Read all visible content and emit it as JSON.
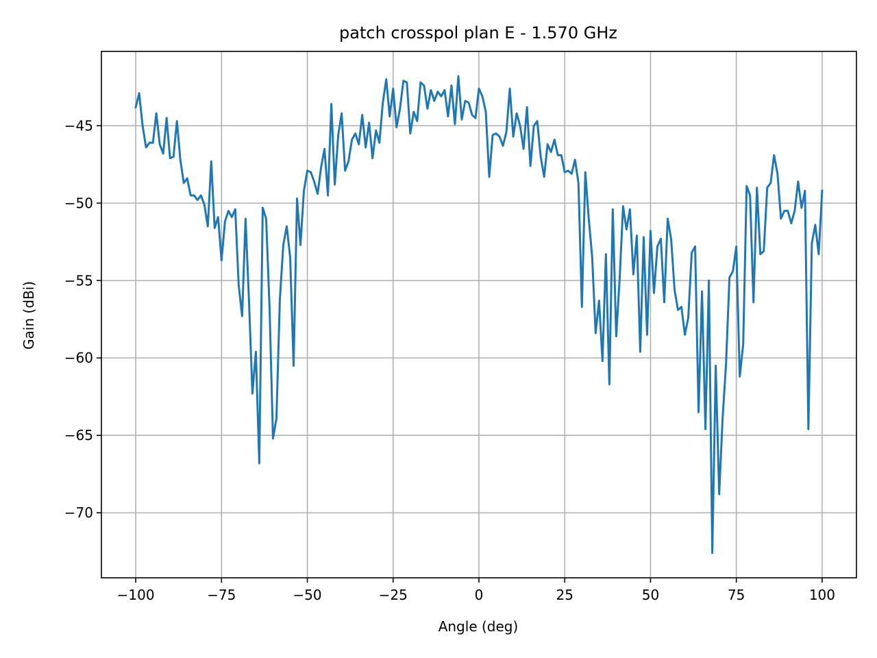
{
  "chart_data": {
    "type": "line",
    "title": "patch crosspol plan E - 1.570 GHz",
    "xlabel": "Angle (deg)",
    "ylabel": "Gain (dBi)",
    "xlim": [
      -110,
      110
    ],
    "ylim": [
      -74.2,
      -40.2
    ],
    "xticks": [
      -100,
      -75,
      -50,
      -25,
      0,
      25,
      50,
      75,
      100
    ],
    "yticks": [
      -70,
      -65,
      -60,
      -55,
      -50,
      -45
    ],
    "grid": true,
    "series": [
      {
        "color": "#1f77b4",
        "x": [
          -100,
          -99,
          -98,
          -97,
          -96,
          -95,
          -94,
          -93,
          -92,
          -91,
          -90,
          -89,
          -88,
          -87,
          -86,
          -85,
          -84,
          -83,
          -82,
          -81,
          -80,
          -79,
          -78,
          -77,
          -76,
          -75,
          -74,
          -73,
          -72,
          -71,
          -70,
          -69,
          -68,
          -67,
          -66,
          -65,
          -64,
          -63,
          -62,
          -61,
          -60,
          -59,
          -58,
          -57,
          -56,
          -55,
          -54,
          -53,
          -52,
          -51,
          -50,
          -49,
          -48,
          -47,
          -46,
          -45,
          -44,
          -43,
          -42,
          -41,
          -40,
          -39,
          -38,
          -37,
          -36,
          -35,
          -34,
          -33,
          -32,
          -31,
          -30,
          -29,
          -28,
          -27,
          -26,
          -25,
          -24,
          -23,
          -22,
          -21,
          -20,
          -19,
          -18,
          -17,
          -16,
          -15,
          -14,
          -13,
          -12,
          -11,
          -10,
          -9,
          -8,
          -7,
          -6,
          -5,
          -4,
          -3,
          -2,
          -1,
          0,
          1,
          2,
          3,
          4,
          5,
          6,
          7,
          8,
          9,
          10,
          11,
          12,
          13,
          14,
          15,
          16,
          17,
          18,
          19,
          20,
          21,
          22,
          23,
          24,
          25,
          26,
          27,
          28,
          29,
          30,
          31,
          32,
          33,
          34,
          35,
          36,
          37,
          38,
          39,
          40,
          41,
          42,
          43,
          44,
          45,
          46,
          47,
          48,
          49,
          50,
          51,
          52,
          53,
          54,
          55,
          56,
          57,
          58,
          59,
          60,
          61,
          62,
          63,
          64,
          65,
          66,
          67,
          68,
          69,
          70,
          71,
          72,
          73,
          74,
          75,
          76,
          77,
          78,
          79,
          80,
          81,
          82,
          83,
          84,
          85,
          86,
          87,
          88,
          89,
          90,
          91,
          92,
          93,
          94,
          95,
          96,
          97,
          98,
          99,
          100
        ],
        "y": [
          -43.8,
          -42.9,
          -45.0,
          -46.4,
          -46.1,
          -46.1,
          -44.2,
          -46.2,
          -46.8,
          -44.5,
          -47.1,
          -47.0,
          -44.7,
          -47.2,
          -48.7,
          -48.4,
          -49.5,
          -49.5,
          -49.8,
          -49.5,
          -50.1,
          -51.5,
          -47.3,
          -51.6,
          -50.9,
          -53.7,
          -51.2,
          -50.5,
          -50.9,
          -50.4,
          -55.3,
          -57.3,
          -51.0,
          -56.3,
          -62.3,
          -59.6,
          -66.8,
          -50.3,
          -51.0,
          -56.8,
          -65.2,
          -63.9,
          -56.2,
          -52.7,
          -51.5,
          -53.5,
          -60.5,
          -49.7,
          -52.7,
          -49.2,
          -47.9,
          -48.0,
          -48.6,
          -49.4,
          -47.7,
          -46.5,
          -49.5,
          -43.6,
          -48.8,
          -45.6,
          -44.2,
          -47.9,
          -47.3,
          -45.9,
          -45.5,
          -46.2,
          -44.3,
          -46.4,
          -44.8,
          -47.1,
          -45.3,
          -46.1,
          -43.5,
          -42.0,
          -44.4,
          -42.6,
          -45.1,
          -43.9,
          -42.1,
          -42.2,
          -45.5,
          -44.1,
          -44.7,
          -42.2,
          -42.4,
          -43.9,
          -42.7,
          -43.4,
          -42.8,
          -43.1,
          -42.7,
          -44.4,
          -42.4,
          -44.9,
          -41.8,
          -44.6,
          -43.4,
          -43.5,
          -44.3,
          -44.5,
          -42.6,
          -43.1,
          -44.1,
          -48.3,
          -45.6,
          -45.5,
          -45.7,
          -46.3,
          -45.4,
          -42.6,
          -45.7,
          -44.2,
          -45.0,
          -46.5,
          -43.8,
          -47.6,
          -45.0,
          -44.7,
          -47.0,
          -48.3,
          -46.2,
          -46.7,
          -45.9,
          -46.9,
          -46.9,
          -48.0,
          -47.9,
          -48.1,
          -47.2,
          -48.7,
          -56.7,
          -48.0,
          -51.0,
          -53.5,
          -58.4,
          -56.3,
          -60.2,
          -53.3,
          -61.7,
          -50.4,
          -58.6,
          -54.9,
          -50.2,
          -51.7,
          -50.4,
          -54.6,
          -52.1,
          -59.6,
          -52.2,
          -58.5,
          -51.8,
          -55.8,
          -52.8,
          -52.3,
          -56.4,
          -51.0,
          -52.3,
          -55.6,
          -56.9,
          -56.7,
          -58.5,
          -57.4,
          -53.2,
          -52.8,
          -63.5,
          -55.7,
          -64.6,
          -55.0,
          -72.6,
          -60.5,
          -68.8,
          -63.9,
          -60.4,
          -54.8,
          -54.4,
          -52.8,
          -61.2,
          -59.1,
          -48.9,
          -49.5,
          -56.4,
          -49.0,
          -53.3,
          -53.1,
          -49.0,
          -48.7,
          -46.9,
          -48.1,
          -51.0,
          -50.5,
          -50.5,
          -51.3,
          -50.5,
          -48.6,
          -50.3,
          -49.2,
          -64.6,
          -52.6,
          -51.4,
          -53.3,
          -49.2
        ]
      }
    ]
  }
}
